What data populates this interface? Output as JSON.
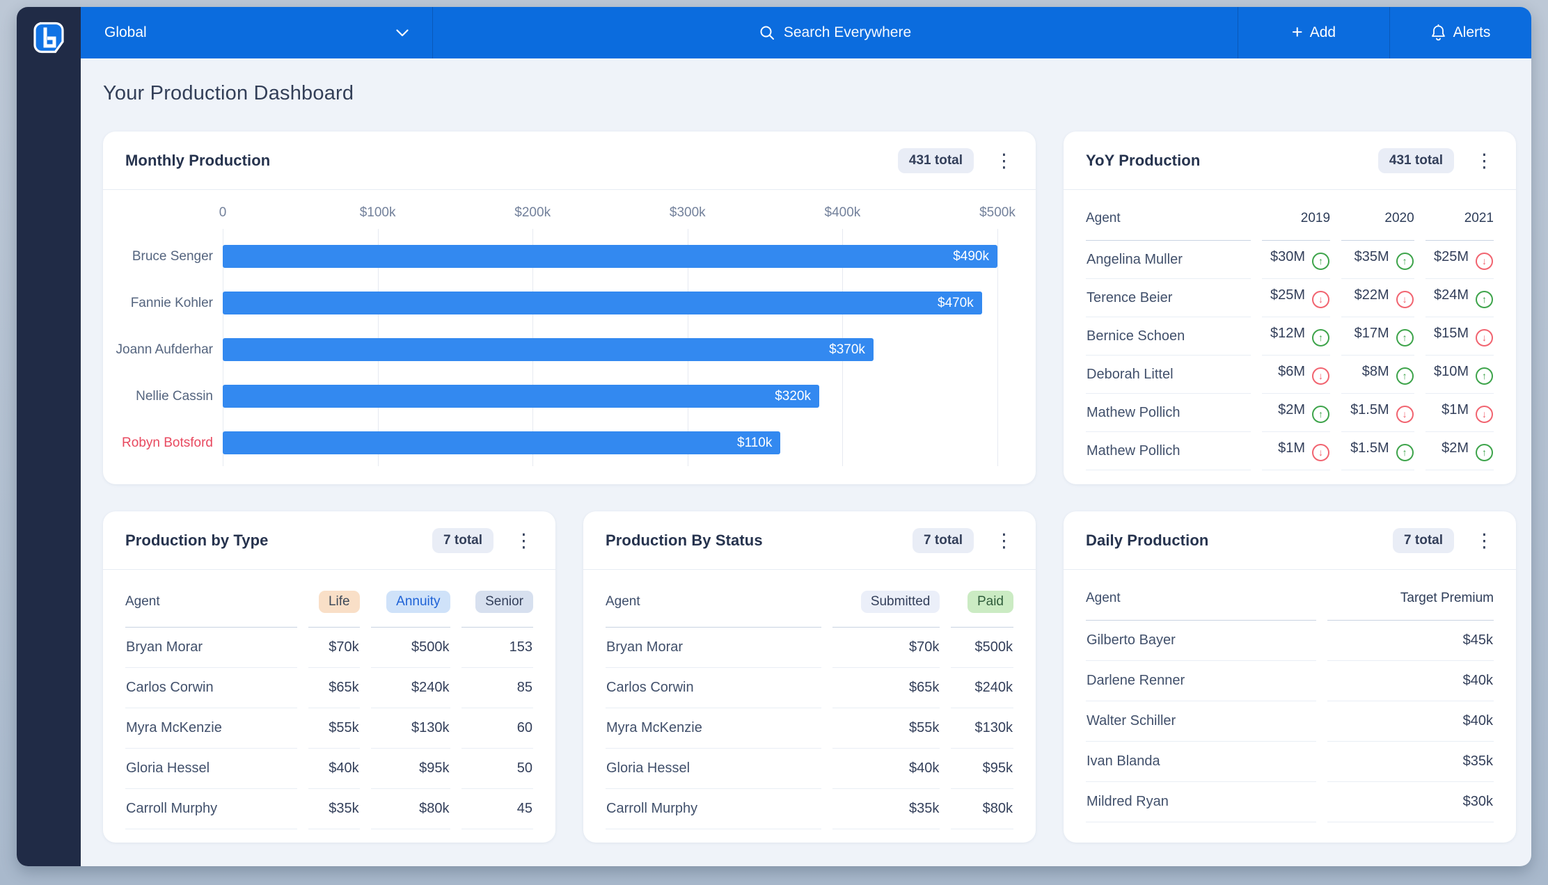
{
  "topbar": {
    "scope_label": "Global",
    "search_placeholder": "Search Everywhere",
    "add_label": "Add",
    "alerts_label": "Alerts"
  },
  "page": {
    "title": "Your Production Dashboard"
  },
  "colors": {
    "topbar_blue": "#0B6CDE",
    "sidebar_navy": "#202B46",
    "bar_blue": "#3389F0",
    "trend_up_green": "#3EA44B",
    "trend_down_red": "#F16470",
    "highlight_red": "#E8495F"
  },
  "chart_data": {
    "type": "bar",
    "orientation": "horizontal",
    "title": "Monthly Production",
    "categories": [
      "Bruce Senger",
      "Fannie Kohler",
      "Joann Aufderhar",
      "Nellie Cassin",
      "Robyn Botsford"
    ],
    "values": [
      490000,
      470000,
      370000,
      320000,
      110000
    ],
    "value_labels": [
      "$490k",
      "$470k",
      "$370k",
      "$320k",
      "$110k"
    ],
    "bar_display_pct": [
      100,
      98,
      84,
      77,
      72
    ],
    "x_ticks": [
      "0",
      "$100k",
      "$200k",
      "$300k",
      "$400k",
      "$500k"
    ],
    "xlim": [
      0,
      500000
    ],
    "grid": true,
    "highlight_category": "Robyn Botsford"
  },
  "cards": {
    "monthly": {
      "title": "Monthly Production",
      "badge": "431 total"
    },
    "yoy": {
      "title": "YoY Production",
      "badge": "431 total",
      "columns": [
        "Agent",
        "2019",
        "2020",
        "2021"
      ],
      "rows": [
        {
          "agent": "Angelina Muller",
          "values": [
            {
              "amount": "$30M",
              "trend": "up"
            },
            {
              "amount": "$35M",
              "trend": "up"
            },
            {
              "amount": "$25M",
              "trend": "down"
            }
          ]
        },
        {
          "agent": "Terence Beier",
          "values": [
            {
              "amount": "$25M",
              "trend": "down"
            },
            {
              "amount": "$22M",
              "trend": "down"
            },
            {
              "amount": "$24M",
              "trend": "up"
            }
          ]
        },
        {
          "agent": "Bernice Schoen",
          "values": [
            {
              "amount": "$12M",
              "trend": "up"
            },
            {
              "amount": "$17M",
              "trend": "up"
            },
            {
              "amount": "$15M",
              "trend": "down"
            }
          ]
        },
        {
          "agent": "Deborah Littel",
          "values": [
            {
              "amount": "$6M",
              "trend": "down"
            },
            {
              "amount": "$8M",
              "trend": "up"
            },
            {
              "amount": "$10M",
              "trend": "up"
            }
          ]
        },
        {
          "agent": "Mathew Pollich",
          "values": [
            {
              "amount": "$2M",
              "trend": "up"
            },
            {
              "amount": "$1.5M",
              "trend": "down"
            },
            {
              "amount": "$1M",
              "trend": "down"
            }
          ]
        },
        {
          "agent": "Mathew Pollich",
          "values": [
            {
              "amount": "$1M",
              "trend": "down"
            },
            {
              "amount": "$1.5M",
              "trend": "up"
            },
            {
              "amount": "$2M",
              "trend": "up"
            }
          ]
        }
      ]
    },
    "by_type": {
      "title": "Production by Type",
      "badge": "7 total",
      "agent_header": "Agent",
      "header_badges": [
        {
          "label": "Life",
          "bg": "#F9DFC7",
          "fg": "#3D4959"
        },
        {
          "label": "Annuity",
          "bg": "#CFE2F9",
          "fg": "#1E62D6"
        },
        {
          "label": "Senior",
          "bg": "#D7E0EF",
          "fg": "#333F5A"
        }
      ],
      "rows": [
        {
          "agent": "Bryan Morar",
          "values": [
            "$70k",
            "$500k",
            "153"
          ]
        },
        {
          "agent": "Carlos Corwin",
          "values": [
            "$65k",
            "$240k",
            "85"
          ]
        },
        {
          "agent": "Myra McKenzie",
          "values": [
            "$55k",
            "$130k",
            "60"
          ]
        },
        {
          "agent": "Gloria Hessel",
          "values": [
            "$40k",
            "$95k",
            "50"
          ]
        },
        {
          "agent": "Carroll Murphy",
          "values": [
            "$35k",
            "$80k",
            "45"
          ]
        }
      ]
    },
    "by_status": {
      "title": "Production By Status",
      "badge": "7 total",
      "agent_header": "Agent",
      "header_badges": [
        {
          "label": "Submitted",
          "bg": "#EBEFF9",
          "fg": "#333F5A"
        },
        {
          "label": "Paid",
          "bg": "#CBEBC3",
          "fg": "#2F5C3B"
        }
      ],
      "rows": [
        {
          "agent": "Bryan Morar",
          "values": [
            "$70k",
            "$500k"
          ]
        },
        {
          "agent": "Carlos Corwin",
          "values": [
            "$65k",
            "$240k"
          ]
        },
        {
          "agent": "Myra McKenzie",
          "values": [
            "$55k",
            "$130k"
          ]
        },
        {
          "agent": "Gloria Hessel",
          "values": [
            "$40k",
            "$95k"
          ]
        },
        {
          "agent": "Carroll Murphy",
          "values": [
            "$35k",
            "$80k"
          ]
        }
      ]
    },
    "daily": {
      "title": "Daily Production",
      "badge": "7 total",
      "agent_header": "Agent",
      "value_header": "Target Premium",
      "rows": [
        {
          "agent": "Gilberto Bayer",
          "values": [
            "$45k"
          ]
        },
        {
          "agent": "Darlene Renner",
          "values": [
            "$40k"
          ]
        },
        {
          "agent": "Walter Schiller",
          "values": [
            "$40k"
          ]
        },
        {
          "agent": "Ivan Blanda",
          "values": [
            "$35k"
          ]
        },
        {
          "agent": "Mildred Ryan",
          "values": [
            "$30k"
          ]
        }
      ]
    }
  }
}
